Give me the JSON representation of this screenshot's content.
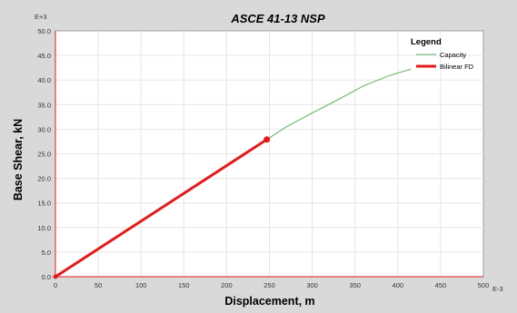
{
  "chart_data": {
    "type": "line",
    "title": "ASCE 41-13 NSP",
    "xlabel": "Displacement, m",
    "ylabel": "Base Shear, kN",
    "x_exponent": "E-3",
    "y_exponent": "E+3",
    "xlim": [
      0,
      500
    ],
    "ylim": [
      0,
      50
    ],
    "x_ticks": [
      "0",
      "50",
      "100",
      "150",
      "200",
      "250",
      "300",
      "350",
      "400",
      "450",
      "500"
    ],
    "y_ticks": [
      "0.0",
      "5.0",
      "10.0",
      "15.0",
      "20.0",
      "25.0",
      "30.0",
      "35.0",
      "40.0",
      "45.0",
      "50.0"
    ],
    "grid": true,
    "legend": {
      "title": "Legend",
      "position": "top-right"
    },
    "series": [
      {
        "name": "Capacity",
        "color": "#7fbf7f",
        "x": [
          0,
          50,
          100,
          150,
          200,
          247,
          270,
          300,
          330,
          360,
          390,
          415
        ],
        "y": [
          0,
          5.7,
          11.3,
          17.0,
          22.6,
          27.9,
          30.5,
          33.3,
          36.0,
          38.8,
          40.9,
          42.2
        ]
      },
      {
        "name": "Bilinear FD",
        "color": "#e41a1c",
        "x": [
          0,
          247
        ],
        "y": [
          0,
          27.9
        ]
      }
    ],
    "markers": [
      {
        "x": 247,
        "y": 27.9,
        "color": "#e41a1c"
      }
    ]
  }
}
